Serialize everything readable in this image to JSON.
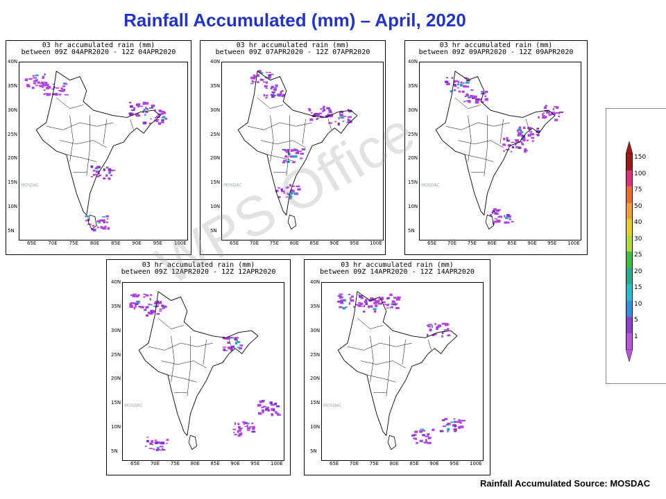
{
  "title": "Rainfall Accumulated (mm) – April, 2020",
  "source": "Rainfall Accumulated Source: MOSDAC",
  "watermark": "WPS Office",
  "map_credit": "MOSDAC",
  "panels": [
    {
      "line1": "03 hr accumulated rain (mm)",
      "line2": "between 09Z 04APR2020 - 12Z 04APR2020"
    },
    {
      "line1": "03 hr accumulated rain (mm)",
      "line2": "between 09Z 07APR2020 - 12Z 07APR2020"
    },
    {
      "line1": "03 hr accumulated rain (mm)",
      "line2": "between 09Z 09APR2020 - 12Z 09APR2020"
    },
    {
      "line1": "03 hr accumulated rain (mm)",
      "line2": "between 09Z 12APR2020 - 12Z 12APR2020"
    },
    {
      "line1": "03 hr accumulated rain (mm)",
      "line2": "between 09Z 14APR2020 - 12Z 14APR2020"
    }
  ],
  "lat_labels": [
    "40N",
    "35N",
    "30N",
    "25N",
    "20N",
    "15N",
    "10N",
    "5N"
  ],
  "lon_labels": [
    "65E",
    "70E",
    "75E",
    "80E",
    "85E",
    "90E",
    "95E",
    "100E"
  ],
  "legend": [
    {
      "label": "150",
      "color": "#a01818"
    },
    {
      "label": "100",
      "color": "#e0307a"
    },
    {
      "label": "75",
      "color": "#f06a2a"
    },
    {
      "label": "50",
      "color": "#f4a030"
    },
    {
      "label": "40",
      "color": "#e8d020"
    },
    {
      "label": "30",
      "color": "#b0dc30"
    },
    {
      "label": "25",
      "color": "#40c040"
    },
    {
      "label": "20",
      "color": "#20b090"
    },
    {
      "label": "15",
      "color": "#20c0d0"
    },
    {
      "label": "10",
      "color": "#3090e0"
    },
    {
      "label": "5",
      "color": "#9040d0"
    },
    {
      "label": "1",
      "color": "#c050e0"
    }
  ]
}
